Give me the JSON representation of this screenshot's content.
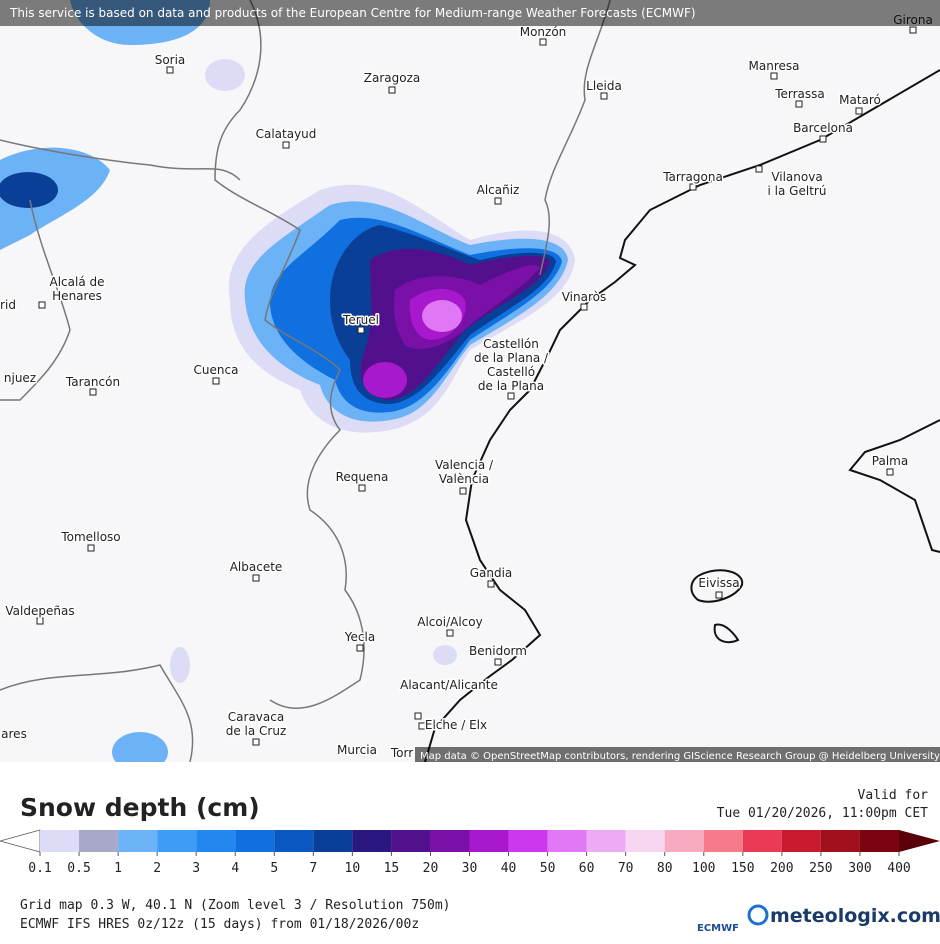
{
  "header": {
    "notice": "This service is based on data and products of the European Centre for Medium-range Weather Forecasts (ECMWF)"
  },
  "map": {
    "attribution": "Map data © OpenStreetMap contributors, rendering GIScience Research Group @ Heidelberg University",
    "cities": [
      {
        "label": [
          "Soria"
        ]
      },
      {
        "label": [
          "Monzón"
        ]
      },
      {
        "label": [
          "Girona"
        ]
      },
      {
        "label": [
          "Zaragoza"
        ]
      },
      {
        "label": [
          "Lleida"
        ]
      },
      {
        "label": [
          "Manresa"
        ]
      },
      {
        "label": [
          "Terrassa"
        ]
      },
      {
        "label": [
          "Mataró"
        ]
      },
      {
        "label": [
          "Barcelona"
        ]
      },
      {
        "label": [
          "Calatayud"
        ]
      },
      {
        "label": [
          "Tarragona"
        ]
      },
      {
        "label": [
          "Vilanova",
          "i la Geltrú"
        ]
      },
      {
        "label": [
          "Alcañiz"
        ]
      },
      {
        "label": [
          "Alcalá de",
          "Henares"
        ]
      },
      {
        "label": [
          "Vinaròs"
        ]
      },
      {
        "label": [
          "Teruel"
        ]
      },
      {
        "label": [
          "Castellón",
          "de la Plana /",
          "Castelló",
          "de la Plana"
        ]
      },
      {
        "label": [
          "Tarancón"
        ]
      },
      {
        "label": [
          "Cuenca"
        ]
      },
      {
        "label": [
          "Valencia /",
          "València"
        ]
      },
      {
        "label": [
          "Requena"
        ]
      },
      {
        "label": [
          "Tomelloso"
        ]
      },
      {
        "label": [
          "Albacete"
        ]
      },
      {
        "label": [
          "Gandia"
        ]
      },
      {
        "label": [
          "Eivissa"
        ]
      },
      {
        "label": [
          "Valdepeñas"
        ]
      },
      {
        "label": [
          "Alcoi/Alcoy"
        ]
      },
      {
        "label": [
          "Yecla"
        ]
      },
      {
        "label": [
          "Benidorm"
        ]
      },
      {
        "label": [
          "Alacant/Alicante"
        ]
      },
      {
        "label": [
          "Caravaca",
          "de la Cruz"
        ]
      },
      {
        "label": [
          "Elche / Elx"
        ]
      },
      {
        "label": [
          "Murcia"
        ]
      },
      {
        "label": [
          "Palma"
        ]
      },
      {
        "label": [
          "rid"
        ]
      },
      {
        "label": [
          "njuez"
        ]
      },
      {
        "label": [
          "ares"
        ]
      },
      {
        "label": [
          "Torr"
        ]
      }
    ]
  },
  "legend": {
    "title": "Snow depth (cm)",
    "valid_label": "Valid for",
    "valid_time": "Tue 01/20/2026, 11:00pm CET",
    "levels": [
      0.1,
      0.5,
      1,
      2,
      3,
      4,
      5,
      7,
      10,
      15,
      20,
      30,
      40,
      50,
      60,
      70,
      80,
      100,
      150,
      200,
      250,
      300,
      400
    ],
    "colors": [
      "#dcdcf6",
      "#a8a8c8",
      "#6cb2f7",
      "#3f9cf6",
      "#2288f0",
      "#1070e0",
      "#0c58c2",
      "#093f96",
      "#2a1780",
      "#52108c",
      "#7a10a8",
      "#a818cc",
      "#cc38ee",
      "#e078f5",
      "#eeaaf5",
      "#f6d6f0",
      "#f7aac0",
      "#f57a8a",
      "#ea3a55",
      "#c81a2e",
      "#a0101c",
      "#7a0510"
    ],
    "below_color": "#ffffff",
    "above_color": "#5a0008"
  },
  "footer": {
    "grid": "Grid map 0.3 W, 40.1 N (Zoom level 3 / Resolution 750m)",
    "model": "ECMWF IFS HRES 0z/12z (15 days) from 01/18/2026/00z",
    "ecmwf_logo": "ECMWF",
    "brand": "meteologix.com"
  }
}
